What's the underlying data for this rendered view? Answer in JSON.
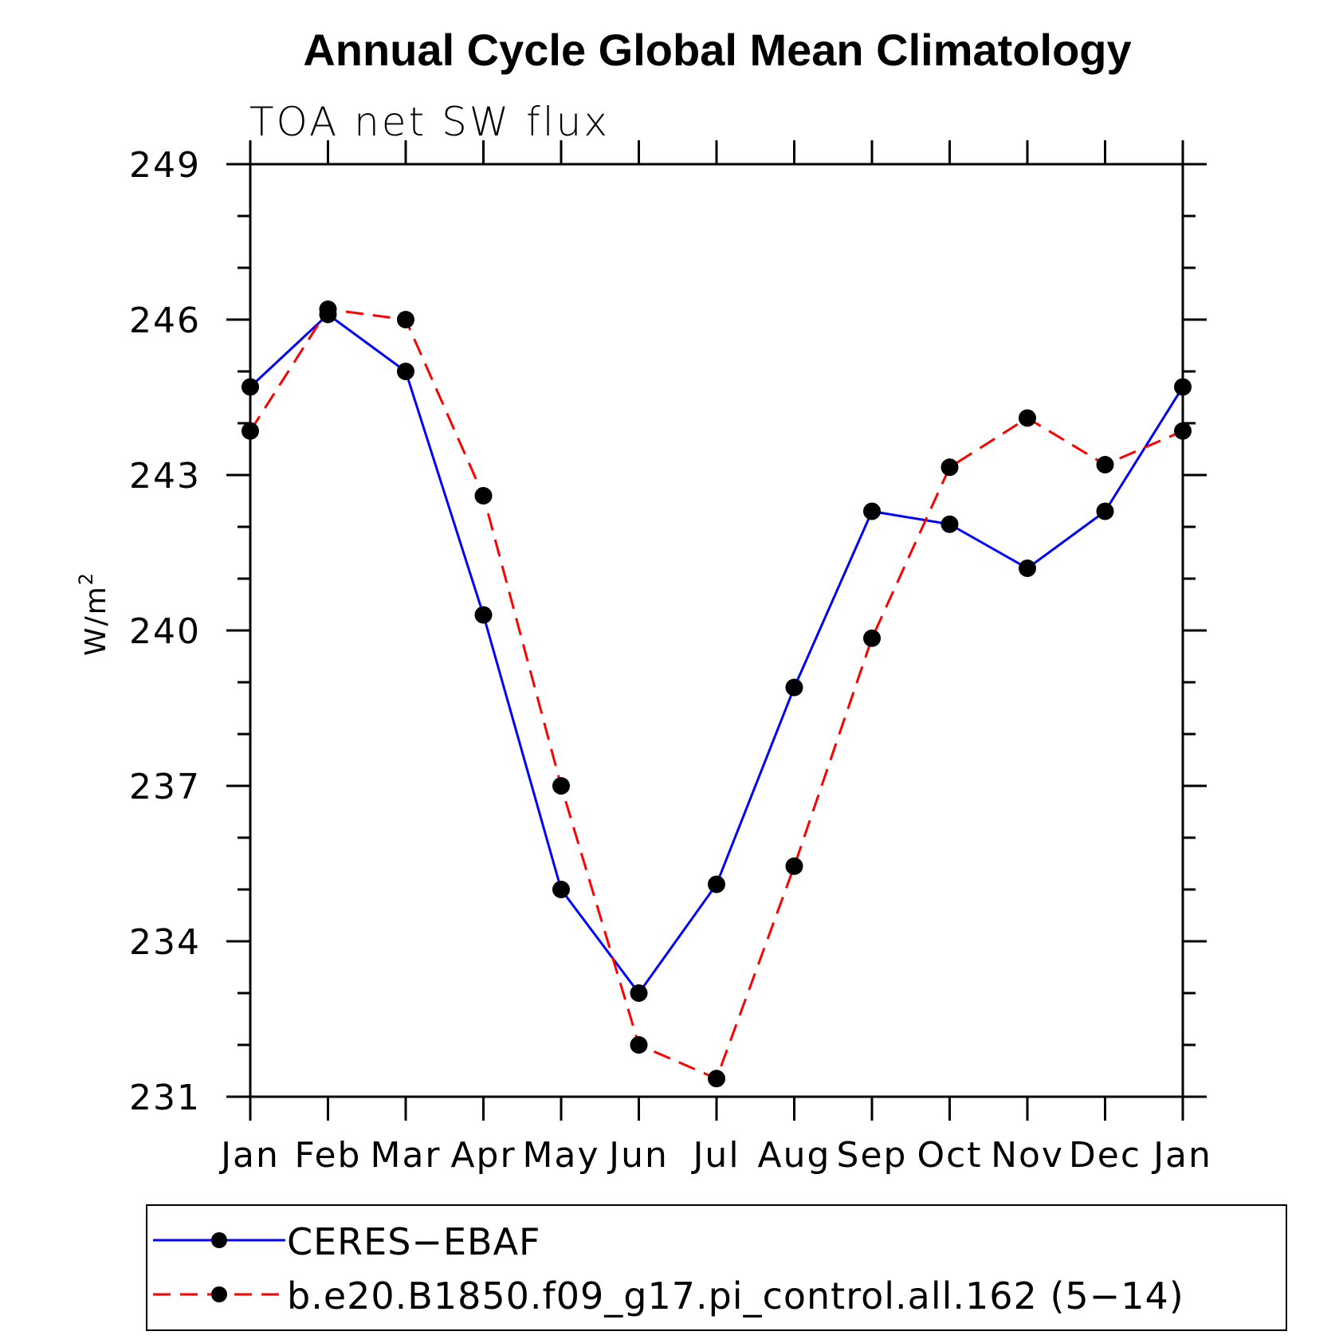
{
  "chart_data": {
    "type": "line",
    "title": "Annual Cycle Global Mean Climatology",
    "subtitle": "TOA net SW flux",
    "xlabel": "",
    "ylabel": "W/m",
    "ylabel_superscript": "2",
    "ylim": [
      231,
      249
    ],
    "yticks": [
      "249",
      "246",
      "243",
      "240",
      "237",
      "234",
      "231"
    ],
    "categories": [
      "Jan",
      "Feb",
      "Mar",
      "Apr",
      "May",
      "Jun",
      "Jul",
      "Aug",
      "Sep",
      "Oct",
      "Nov",
      "Dec",
      "Jan"
    ],
    "series": [
      {
        "name": "CERES−EBAF",
        "color": "#0000ff",
        "dash": "solid",
        "values": [
          244.7,
          246.1,
          245.0,
          240.3,
          235.0,
          233.0,
          235.1,
          238.9,
          242.3,
          242.05,
          241.2,
          242.3,
          244.7
        ]
      },
      {
        "name": "b.e20.B1850.f09_g17.pi_control.all.162 (5−14)",
        "color": "#ff0000",
        "dash": "dashed",
        "values": [
          243.85,
          246.2,
          246.0,
          242.6,
          237.0,
          232.0,
          231.35,
          235.45,
          239.85,
          243.15,
          244.1,
          243.2,
          243.85
        ]
      }
    ],
    "legend_position": "bottom"
  }
}
